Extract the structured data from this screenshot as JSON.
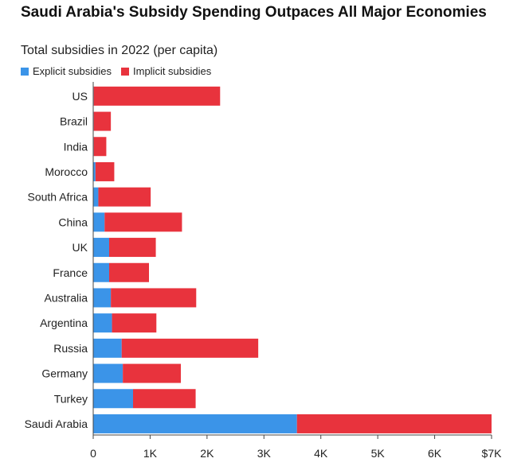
{
  "title": "Saudi Arabia's Subsidy Spending Outpaces All Major Economies",
  "subtitle": "Total subsidies in 2022 (per capita)",
  "legend": {
    "explicit_label": "Explicit subsidies",
    "implicit_label": "Implicit subsidies"
  },
  "colors": {
    "explicit": "#3b94e8",
    "implicit": "#e8333d"
  },
  "chart_data": {
    "type": "bar",
    "orientation": "horizontal",
    "stacked": true,
    "categories": [
      "US",
      "Brazil",
      "India",
      "Morocco",
      "South Africa",
      "China",
      "UK",
      "France",
      "Australia",
      "Argentina",
      "Russia",
      "Germany",
      "Turkey",
      "Saudi Arabia"
    ],
    "series": [
      {
        "name": "Explicit subsidies",
        "values": [
          10,
          10,
          10,
          40,
          90,
          200,
          280,
          280,
          310,
          330,
          500,
          520,
          700,
          3580
        ]
      },
      {
        "name": "Implicit subsidies",
        "values": [
          2220,
          300,
          220,
          330,
          920,
          1360,
          820,
          700,
          1500,
          780,
          2400,
          1020,
          1100,
          3420
        ]
      }
    ],
    "xlim": [
      0,
      7000
    ],
    "x_ticks": [
      0,
      1000,
      2000,
      3000,
      4000,
      5000,
      6000,
      7000
    ],
    "x_tick_labels": [
      "0",
      "1K",
      "2K",
      "3K",
      "4K",
      "5K",
      "6K",
      "$7K"
    ],
    "legend_position": "top-left",
    "grid": false
  }
}
